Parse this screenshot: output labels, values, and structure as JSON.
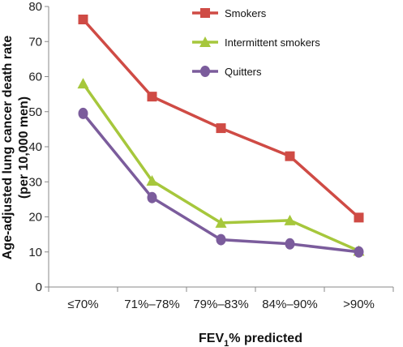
{
  "chart_data": {
    "type": "line",
    "categories": [
      "≤70%",
      "71%–78%",
      "79%–83%",
      "84%–90%",
      ">90%"
    ],
    "series": [
      {
        "name": "Smokers",
        "values": [
          76.3,
          54.3,
          45.3,
          37.3,
          19.8
        ],
        "color": "#cf4b45",
        "marker": "square"
      },
      {
        "name": "Intermittent smokers",
        "values": [
          58.0,
          30.3,
          18.3,
          19.0,
          10.3
        ],
        "color": "#a6c73c",
        "marker": "triangle"
      },
      {
        "name": "Quitters",
        "values": [
          49.5,
          25.5,
          13.5,
          12.3,
          10.0
        ],
        "color": "#7b5c9c",
        "marker": "circle"
      }
    ],
    "ylim": [
      0,
      80
    ],
    "yticks": [
      0,
      10,
      20,
      30,
      40,
      50,
      60,
      70,
      80
    ],
    "ylabel_line1": "Age-adjusted lung cancer death rate",
    "ylabel_line2": "(per 10,000 men)",
    "xlabel_main": "FEV",
    "xlabel_sub": "1",
    "xlabel_rest": "% predicted",
    "grid": false,
    "legend_position": "top-right"
  }
}
